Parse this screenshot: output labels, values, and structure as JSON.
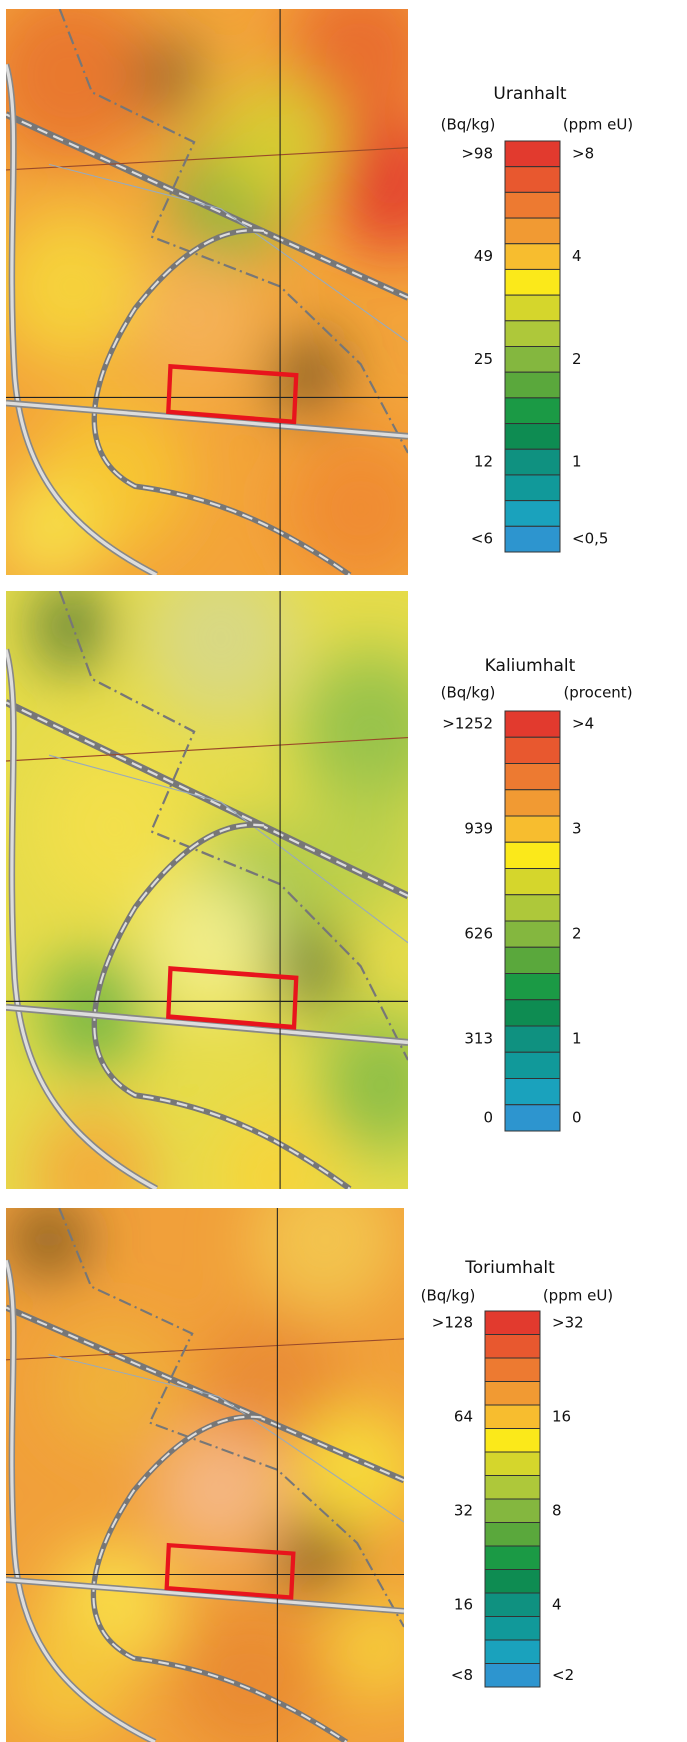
{
  "panels": [
    {
      "title": "Uranhalt",
      "left_unit": "(Bq/kg)",
      "right_unit": "(ppm eU)",
      "left_labels": [
        ">98",
        "49",
        "25",
        "12",
        "<6"
      ],
      "right_labels": [
        ">8",
        "4",
        "2",
        "1",
        "<0,5"
      ]
    },
    {
      "title": "Kaliumhalt",
      "left_unit": "(Bq/kg)",
      "right_unit": "(procent)",
      "left_labels": [
        ">1252",
        "939",
        "626",
        "313",
        "0"
      ],
      "right_labels": [
        ">4",
        "3",
        "2",
        "1",
        "0"
      ]
    },
    {
      "title": "Toriumhalt",
      "left_unit": "(Bq/kg)",
      "right_unit": "(ppm eU)",
      "left_labels": [
        ">128",
        "64",
        "32",
        "16",
        "<8"
      ],
      "right_labels": [
        ">32",
        "16",
        "8",
        "4",
        "<2"
      ]
    }
  ],
  "scale_colors": [
    "#e23a2e",
    "#e8582f",
    "#ed7a31",
    "#f19a33",
    "#f7bd2f",
    "#fbe91a",
    "#d5d62c",
    "#aec83a",
    "#84b73f",
    "#5aa83c",
    "#1b9a45",
    "#0e8c52",
    "#0f9180",
    "#11999a",
    "#1aa2bd",
    "#2d95cf"
  ]
}
